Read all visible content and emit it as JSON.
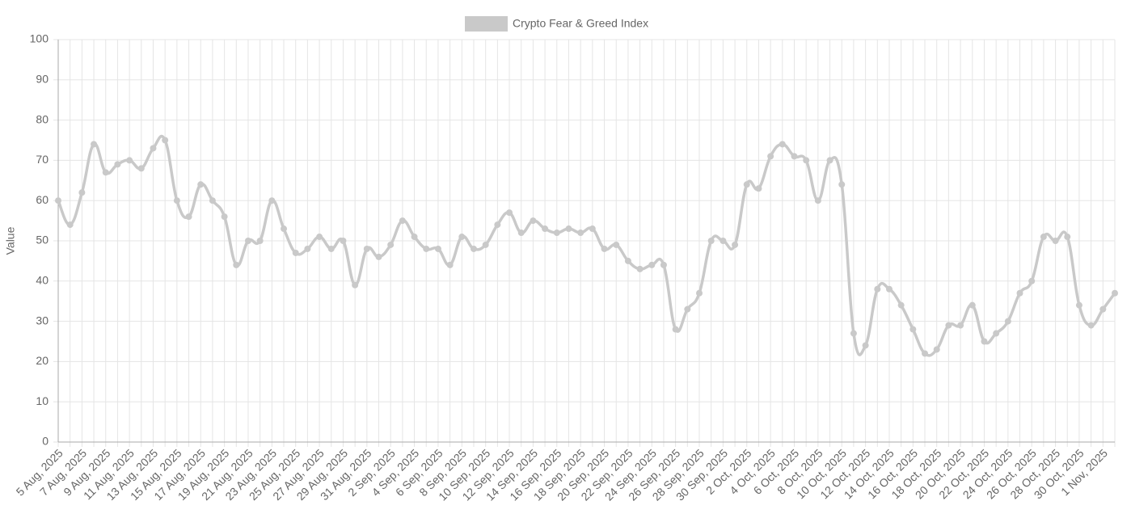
{
  "chart_data": {
    "type": "line",
    "y_label": "Value",
    "categories": [
      "5 Aug, 2025",
      null,
      "7 Aug, 2025",
      null,
      "9 Aug, 2025",
      null,
      "11 Aug, 2025",
      null,
      "13 Aug, 2025",
      null,
      "15 Aug, 2025",
      null,
      "17 Aug, 2025",
      null,
      "19 Aug, 2025",
      null,
      "21 Aug, 2025",
      null,
      "23 Aug, 2025",
      null,
      "25 Aug, 2025",
      null,
      "27 Aug, 2025",
      null,
      "29 Aug, 2025",
      null,
      "31 Aug, 2025",
      null,
      "2 Sep, 2025",
      null,
      "4 Sep, 2025",
      null,
      "6 Sep, 2025",
      null,
      "8 Sep, 2025",
      null,
      "10 Sep, 2025",
      null,
      "12 Sep, 2025",
      null,
      "14 Sep, 2025",
      null,
      "16 Sep, 2025",
      null,
      "18 Sep, 2025",
      null,
      "20 Sep, 2025",
      null,
      "22 Sep, 2025",
      null,
      "24 Sep, 2025",
      null,
      "26 Sep, 2025",
      null,
      "28 Sep, 2025",
      null,
      "30 Sep, 2025",
      null,
      "2 Oct, 2025",
      null,
      "4 Oct, 2025",
      null,
      "6 Oct, 2025",
      null,
      "8 Oct, 2025",
      null,
      "10 Oct, 2025",
      null,
      "12 Oct, 2025",
      null,
      "14 Oct, 2025",
      null,
      "16 Oct, 2025",
      null,
      "18 Oct, 2025",
      null,
      "20 Oct, 2025",
      null,
      "22 Oct, 2025",
      null,
      "24 Oct, 2025",
      null,
      "26 Oct, 2025",
      null,
      "28 Oct, 2025",
      null,
      "30 Oct, 2025",
      null,
      "1 Nov, 2025",
      null
    ],
    "series": [
      {
        "name": "Crypto Fear & Greed Index",
        "color": "#c9c9c9",
        "values": [
          60,
          54,
          62,
          74,
          67,
          69,
          70,
          68,
          73,
          75,
          60,
          56,
          64,
          60,
          56,
          44,
          50,
          50,
          60,
          53,
          47,
          48,
          51,
          48,
          50,
          39,
          48,
          46,
          49,
          55,
          51,
          48,
          48,
          44,
          51,
          48,
          49,
          54,
          57,
          52,
          55,
          53,
          52,
          53,
          52,
          53,
          48,
          49,
          45,
          43,
          44,
          44,
          28,
          33,
          37,
          50,
          50,
          49,
          64,
          63,
          71,
          74,
          71,
          70,
          60,
          70,
          64,
          27,
          24,
          38,
          38,
          34,
          28,
          22,
          23,
          29,
          29,
          34,
          25,
          27,
          30,
          37,
          40,
          51,
          50,
          51,
          34,
          29,
          33,
          37
        ]
      }
    ],
    "ylim": [
      0,
      100
    ],
    "yticks": [
      0,
      10,
      20,
      30,
      40,
      50,
      60,
      70,
      80,
      90,
      100
    ],
    "grid": true,
    "legend": "top"
  }
}
